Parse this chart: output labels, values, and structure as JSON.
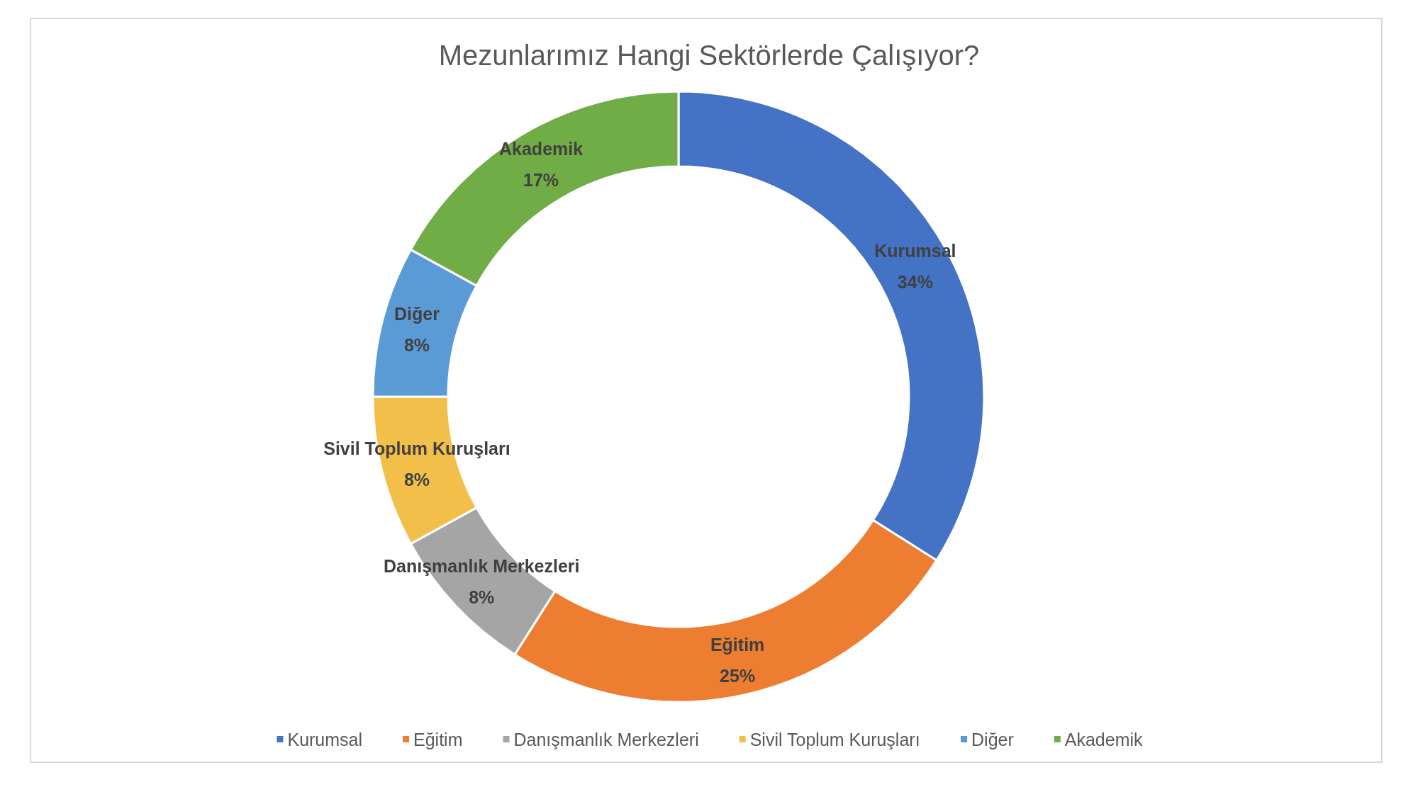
{
  "chart_data": {
    "type": "donut",
    "title": "Mezunlarımız Hangi Sektörlerde Çalışıyor?",
    "categories": [
      "Kurumsal",
      "Eğitim",
      "Danışmanlık Merkezleri",
      "Sivil Toplum Kuruşları",
      "Diğer",
      "Akademik"
    ],
    "values": [
      34,
      25,
      8,
      8,
      8,
      17
    ],
    "value_labels": [
      "34%",
      "25%",
      "8%",
      "8%",
      "8%",
      "17%"
    ],
    "colors": [
      "#4472c4",
      "#ed7d31",
      "#a5a5a5",
      "#f2c04a",
      "#5b9bd5",
      "#70ad47"
    ],
    "legend": "bottom"
  }
}
